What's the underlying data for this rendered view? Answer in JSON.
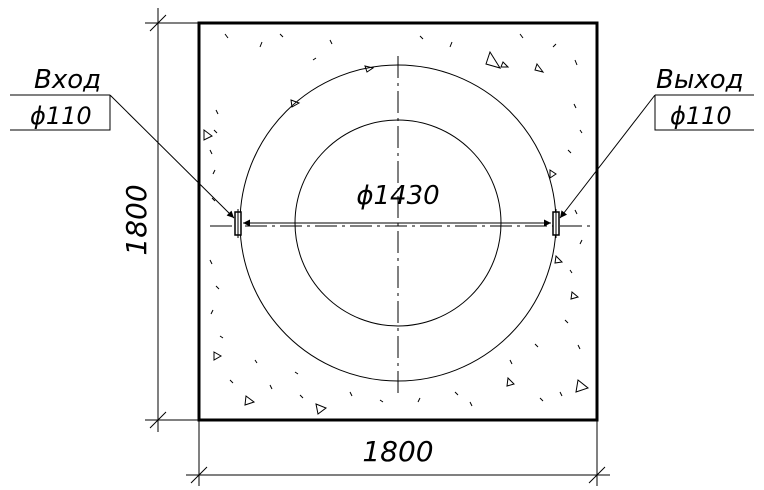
{
  "drawing": {
    "inlet": {
      "label": "Вход",
      "diameter": "ϕ110"
    },
    "outlet": {
      "label": "Выход",
      "diameter": "ϕ110"
    },
    "well_diameter": "ϕ1430",
    "width_dimension": "1800",
    "height_dimension": "1800"
  }
}
